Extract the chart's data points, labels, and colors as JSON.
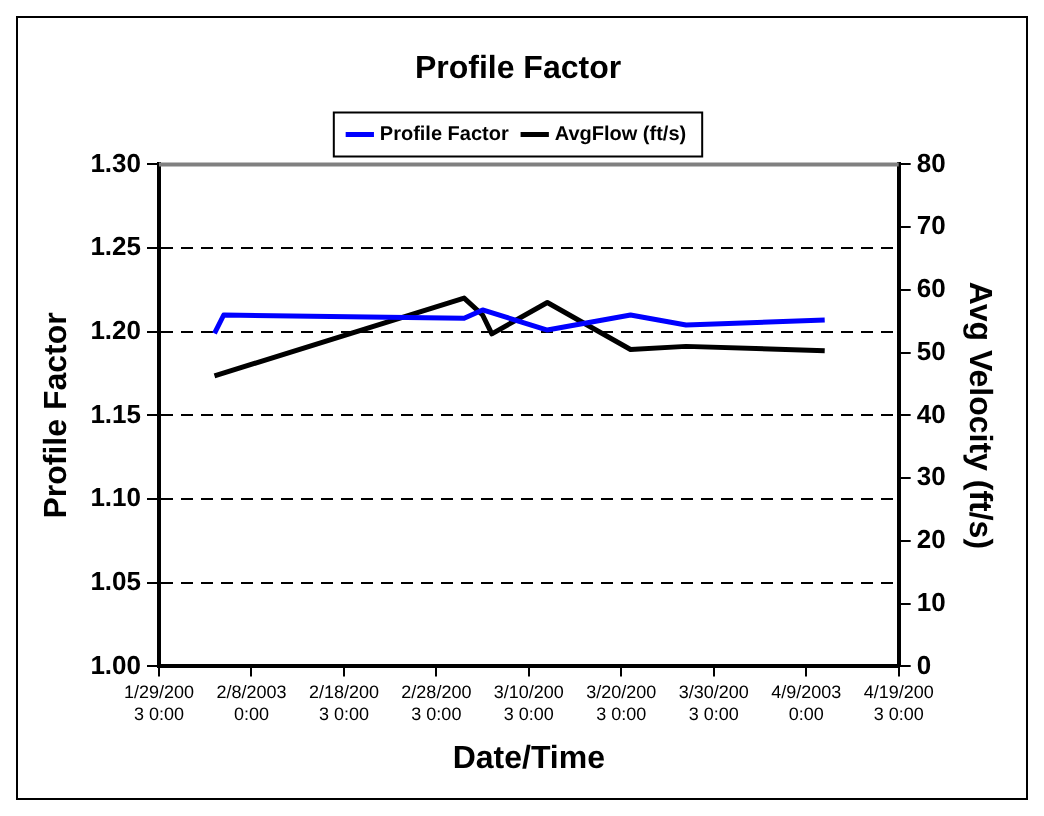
{
  "chart_data": {
    "type": "line",
    "title": "Profile Factor",
    "xlabel": "Date/Time",
    "ylabel": "Profile Factor",
    "y2label": "Avg Velocity (ft/s)",
    "xlim": [
      "2003-01-29",
      "2003-04-19"
    ],
    "xticks": [
      {
        "value": "2003-01-29",
        "label": "1/29/2003 0:00"
      },
      {
        "value": "2003-02-08",
        "label": "2/8/2003 0:00"
      },
      {
        "value": "2003-02-18",
        "label": "2/18/2003 0:00"
      },
      {
        "value": "2003-02-28",
        "label": "2/28/2003 0:00"
      },
      {
        "value": "2003-03-10",
        "label": "3/10/2003 0:00"
      },
      {
        "value": "2003-03-20",
        "label": "3/20/2003 0:00"
      },
      {
        "value": "2003-03-30",
        "label": "3/30/2003 0:00"
      },
      {
        "value": "2003-04-09",
        "label": "4/9/2003 0:00"
      },
      {
        "value": "2003-04-19",
        "label": "4/19/2003 0:00"
      }
    ],
    "ylim": [
      1,
      1.3
    ],
    "yticks": [
      {
        "value": 1,
        "label": "1.00"
      },
      {
        "value": 1.05,
        "label": "1.05"
      },
      {
        "value": 1.1,
        "label": "1.10"
      },
      {
        "value": 1.15,
        "label": "1.15"
      },
      {
        "value": 1.2,
        "label": "1.20"
      },
      {
        "value": 1.25,
        "label": "1.25"
      },
      {
        "value": 1.3,
        "label": "1.30"
      }
    ],
    "y2lim": [
      0,
      80
    ],
    "y2ticks": [
      0,
      10,
      20,
      30,
      40,
      50,
      60,
      70,
      80
    ],
    "grid": "y",
    "legend": "top",
    "marker": "none",
    "line_style": "solid",
    "series": [
      {
        "name": "Profile Factor",
        "color": "#0000ff",
        "x": [
          "2003-02-04",
          "2003-02-05",
          "2003-03-03",
          "2003-03-05",
          "2003-03-12",
          "2003-03-21",
          "2003-03-27",
          "2003-04-11"
        ],
        "values": [
          1.199,
          1.21,
          1.208,
          1.213,
          1.201,
          1.21,
          1.204,
          1.207
        ]
      },
      {
        "name": "AvgFlow (ft/s)",
        "color": "#000000",
        "axis": "y2",
        "x": [
          "2003-02-04",
          "2003-03-03",
          "2003-03-05",
          "2003-03-06",
          "2003-03-12",
          "2003-03-21",
          "2003-03-27",
          "2003-04-11"
        ],
        "values": [
          46.3,
          58.7,
          56,
          53,
          58,
          50.5,
          51,
          50.3
        ]
      }
    ]
  }
}
